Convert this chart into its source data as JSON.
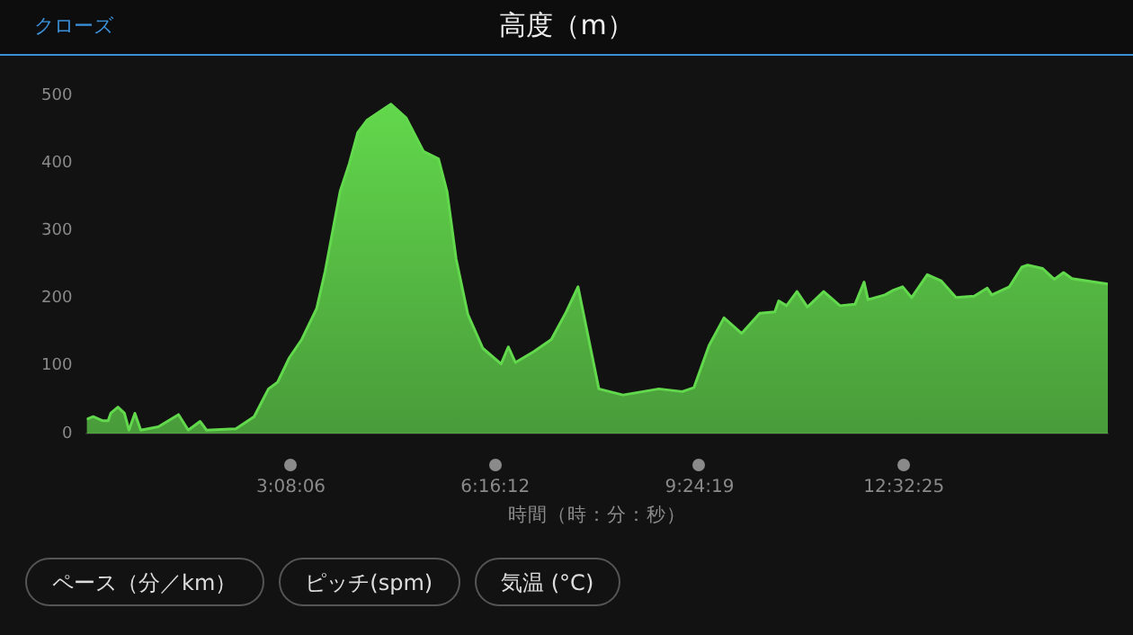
{
  "chart_data": {
    "type": "area",
    "title": "高度（m）",
    "xlabel": "時間（時：分：秒）",
    "annotations": [
      "クローズ",
      "ペース（分／km）",
      "ピッチ(spm)",
      "気温 (°C)"
    ],
    "x": [
      0,
      0.1,
      0.24,
      0.33,
      0.37,
      0.48,
      0.58,
      0.65,
      0.74,
      0.83,
      1.1,
      1.41,
      1.56,
      1.74,
      1.84,
      2.29,
      2.57,
      2.79,
      2.93,
      3.11,
      3.3,
      3.53,
      3.66,
      3.8,
      3.89,
      4.03,
      4.16,
      4.3,
      4.53,
      4.67,
      4.9,
      5.17,
      5.4,
      5.53,
      5.67,
      5.85,
      6.08,
      6.36,
      6.47,
      6.58,
      6.86,
      7.13,
      7.36,
      7.54,
      7.86,
      8.23,
      8.78,
      9.14,
      9.32,
      9.55,
      9.78,
      10.05,
      10.33,
      10.56,
      10.62,
      10.74,
      10.9,
      11.06,
      11.31,
      11.56,
      11.79,
      11.93,
      11.99,
      12.25,
      12.38,
      12.52,
      12.66,
      12.9,
      13.11,
      13.34,
      13.62,
      13.82,
      13.89,
      14.16,
      14.35,
      14.44,
      14.67,
      14.85,
      14.99,
      15.12,
      15.67
    ],
    "series": [
      {
        "color": "#62d94c",
        "values": [
          21,
          25,
          19,
          19,
          30,
          39,
          30,
          5,
          30,
          5,
          10,
          28,
          5,
          18,
          5,
          7,
          25,
          66,
          76,
          112,
          139,
          185,
          240,
          312,
          358,
          399,
          445,
          463,
          478,
          487,
          467,
          417,
          406,
          358,
          258,
          176,
          126,
          103,
          128,
          105,
          121,
          139,
          180,
          217,
          66,
          57,
          66,
          62,
          68,
          130,
          171,
          148,
          178,
          180,
          196,
          189,
          210,
          187,
          210,
          189,
          191,
          224,
          198,
          205,
          212,
          217,
          201,
          235,
          226,
          201,
          203,
          215,
          205,
          217,
          246,
          249,
          244,
          228,
          238,
          229,
          221
        ]
      }
    ],
    "xlim": [
      0,
      15.67
    ],
    "xticks": [
      {
        "value": 3.135,
        "label": "3:08:06"
      },
      {
        "value": 6.27,
        "label": "6:16:12"
      },
      {
        "value": 9.4053,
        "label": "9:24:19"
      },
      {
        "value": 12.5403,
        "label": "12:32:25"
      }
    ],
    "ylim": [
      0,
      500
    ],
    "yticks": [
      0,
      100,
      200,
      300,
      400,
      500
    ],
    "grid": false,
    "legend": false,
    "marker": "none"
  }
}
